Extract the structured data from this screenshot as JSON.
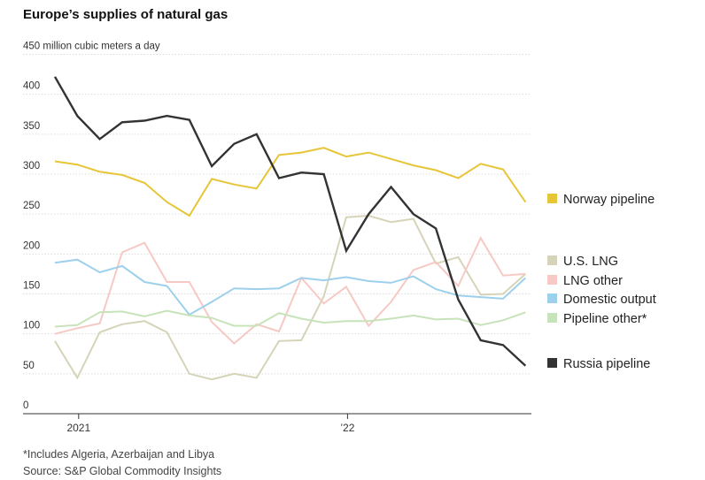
{
  "chart_data": {
    "type": "line",
    "title": "Europe’s supplies of natural gas",
    "ylabel": "million cubic meters a day",
    "ylim": [
      0,
      450
    ],
    "yticks": [
      0,
      50,
      100,
      150,
      200,
      250,
      300,
      350,
      400,
      450
    ],
    "ytick_labels": [
      "0",
      "50",
      "100",
      "150",
      "200",
      "250",
      "300",
      "350",
      "400",
      "450 million cubic meters a day"
    ],
    "x_tick_labels": [
      {
        "label": "2021",
        "month_index": 1
      },
      {
        "label": "’22",
        "month_index": 13
      }
    ],
    "x_month_range": [
      0,
      21
    ],
    "grid": true,
    "legend_position": "right",
    "series": [
      {
        "name": "Norway pipeline",
        "color": "#e6c537",
        "values": [
          316,
          312,
          303,
          299,
          289,
          265,
          248,
          294,
          287,
          282,
          324,
          327,
          333,
          322,
          327,
          319,
          311,
          305,
          295,
          313,
          306,
          265
        ]
      },
      {
        "name": "U.S. LNG",
        "color": "#d6d4b8",
        "values": [
          91,
          45,
          102,
          112,
          116,
          102,
          50,
          43,
          50,
          45,
          91,
          92,
          147,
          246,
          248,
          240,
          244,
          188,
          196,
          149,
          150,
          175
        ]
      },
      {
        "name": "LNG other",
        "color": "#f6c9c4",
        "values": [
          100,
          107,
          113,
          202,
          214,
          165,
          165,
          115,
          88,
          112,
          103,
          170,
          138,
          159,
          110,
          140,
          180,
          190,
          160,
          220,
          173,
          175
        ]
      },
      {
        "name": "Domestic output",
        "color": "#9dd0ec",
        "values": [
          189,
          193,
          177,
          185,
          165,
          160,
          124,
          140,
          157,
          156,
          157,
          170,
          167,
          171,
          166,
          164,
          172,
          156,
          148,
          146,
          144,
          170
        ]
      },
      {
        "name": "Pipeline other*",
        "color": "#c6e3ba",
        "values": [
          109,
          111,
          127,
          128,
          122,
          129,
          123,
          120,
          110,
          110,
          126,
          119,
          114,
          116,
          116,
          119,
          123,
          118,
          119,
          111,
          117,
          127
        ]
      },
      {
        "name": "Russia pipeline",
        "color": "#333333",
        "values": [
          422,
          373,
          344,
          365,
          367,
          373,
          368,
          310,
          338,
          350,
          295,
          302,
          300,
          204,
          250,
          284,
          250,
          232,
          143,
          92,
          86,
          60
        ]
      }
    ]
  },
  "footnote": "*Includes Algeria, Azerbaijan and Libya",
  "source": "Source: S&P Global Commodity Insights"
}
